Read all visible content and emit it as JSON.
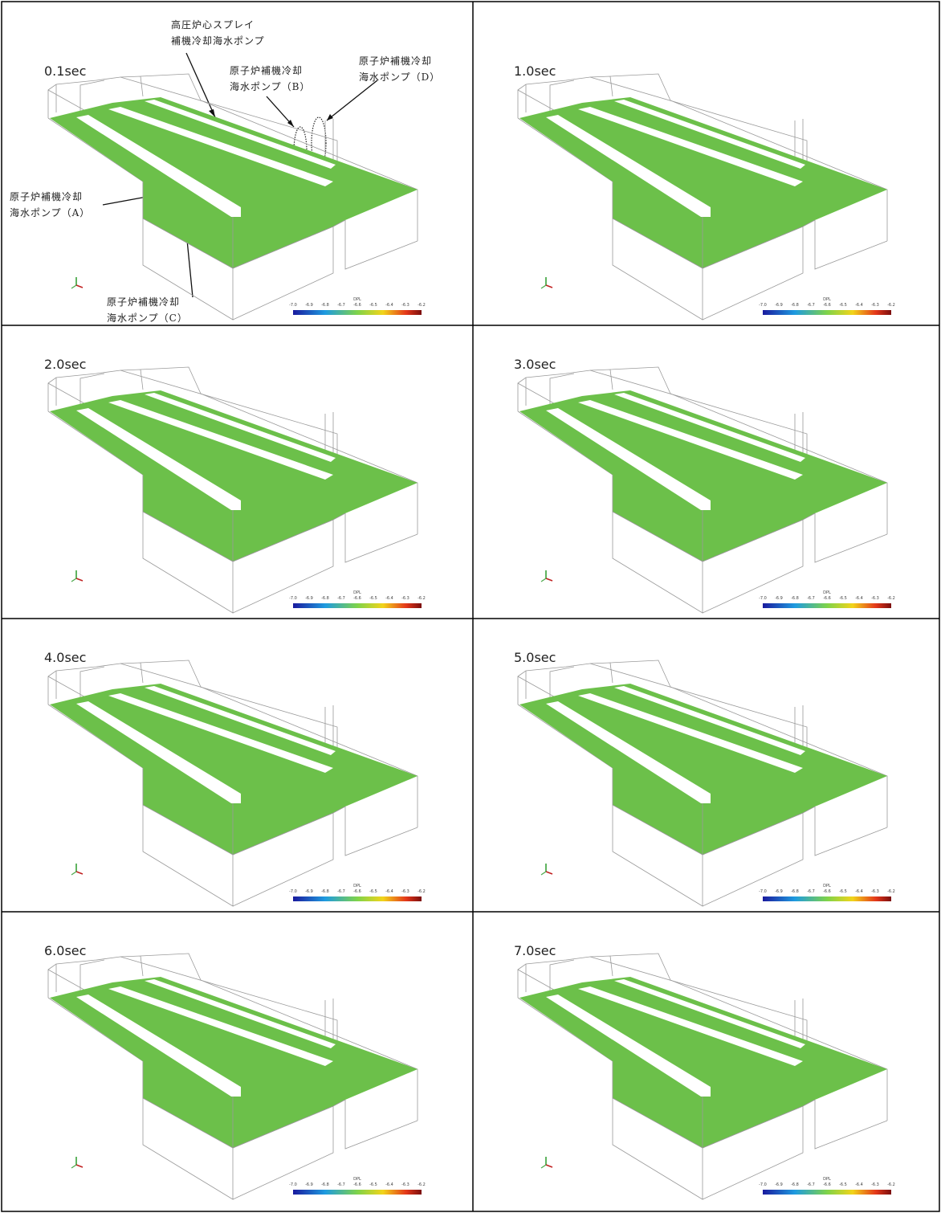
{
  "panels": [
    {
      "time": "0.1sec"
    },
    {
      "time": "1.0sec"
    },
    {
      "time": "2.0sec"
    },
    {
      "time": "3.0sec"
    },
    {
      "time": "4.0sec"
    },
    {
      "time": "5.0sec"
    },
    {
      "time": "6.0sec"
    },
    {
      "time": "7.0sec"
    }
  ],
  "annotations": [
    {
      "lines": [
        "高圧炉心スプレイ",
        "補機冷却海水ポンプ"
      ]
    },
    {
      "lines": [
        "原子炉補機冷却",
        "海水ポンプ（B）"
      ]
    },
    {
      "lines": [
        "原子炉補機冷却",
        "海水ポンプ（D）"
      ]
    },
    {
      "lines": [
        "原子炉補機冷却",
        "海水ポンプ（A）"
      ]
    },
    {
      "lines": [
        "原子炉補機冷却",
        "海水ポンプ（C）"
      ]
    }
  ],
  "colorbar": {
    "title": "DPL",
    "ticks": [
      "-7.0",
      "-6.9",
      "-6.8",
      "-6.7",
      "-6.6",
      "-6.5",
      "-6.4",
      "-6.3",
      "-6.2"
    ]
  }
}
